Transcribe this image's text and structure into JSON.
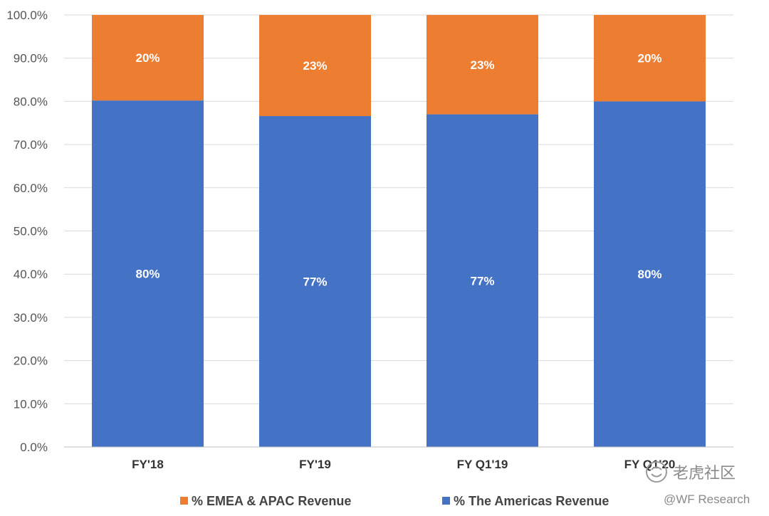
{
  "chart_data": {
    "type": "bar",
    "stacked": true,
    "categories": [
      "FY'18",
      "FY'19",
      "FY Q1'19",
      "FY Q1'20"
    ],
    "series": [
      {
        "name": "% The Americas Revenue",
        "color": "#4472C4",
        "values": [
          80.2,
          76.6,
          77.0,
          80.0
        ],
        "labels": [
          "80%",
          "77%",
          "77%",
          "80%"
        ]
      },
      {
        "name": "% EMEA & APAC Revenue",
        "color": "#ED7D31",
        "values": [
          19.8,
          23.4,
          23.0,
          20.0
        ],
        "labels": [
          "20%",
          "23%",
          "23%",
          "20%"
        ]
      }
    ],
    "ylim": [
      0,
      100
    ],
    "yticks": [
      "0.0%",
      "10.0%",
      "20.0%",
      "30.0%",
      "40.0%",
      "50.0%",
      "60.0%",
      "70.0%",
      "80.0%",
      "90.0%",
      "100.0%"
    ],
    "grid": true,
    "legend": {
      "position": "bottom",
      "items": [
        "% EMEA & APAC Revenue",
        "% The Americas Revenue"
      ]
    },
    "title": "",
    "xlabel": "",
    "ylabel": ""
  },
  "watermark": {
    "brand": "老虎社区",
    "handle": "@WF Research"
  }
}
